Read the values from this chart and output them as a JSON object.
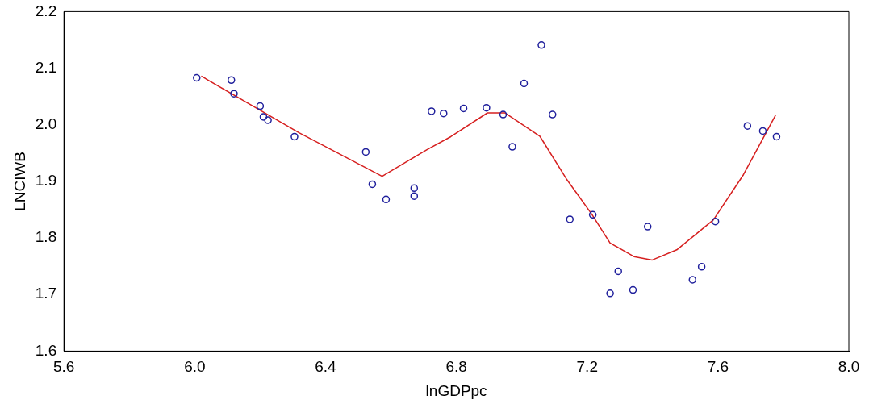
{
  "chart_data": {
    "type": "scatter",
    "xlabel": "lnGDPpc",
    "ylabel": "LNCIWB",
    "xlim": [
      5.6,
      8.0
    ],
    "xticks": [
      5.6,
      {
        "value": 6,
        "label": "6.0"
      },
      6.4,
      6.8,
      7.2,
      7.6,
      {
        "value": 8,
        "label": "8.0"
      }
    ],
    "ylim": [
      1.6,
      2.2
    ],
    "yticks": [
      1.6,
      1.7,
      1.8,
      1.9,
      {
        "value": 2,
        "label": "2.0"
      },
      2.1,
      2.2
    ],
    "grid": false,
    "legend": false,
    "marker": "circle",
    "series": [
      {
        "type": "scatter",
        "color": "#1f1f9c",
        "x": [
          6.006,
          6.112,
          6.12,
          6.2,
          6.21,
          6.224,
          6.305,
          6.523,
          6.543,
          6.585,
          6.671,
          6.671,
          6.724,
          6.761,
          6.822,
          6.892,
          6.943,
          6.971,
          7.007,
          7.06,
          7.094,
          7.147,
          7.217,
          7.295,
          7.27,
          7.34,
          7.385,
          7.522,
          7.55,
          7.592,
          7.69,
          7.737,
          7.779
        ],
        "values": [
          2.083,
          2.079,
          2.055,
          2.033,
          2.014,
          2.008,
          1.979,
          1.952,
          1.895,
          1.868,
          1.888,
          1.874,
          2.024,
          2.02,
          2.029,
          2.03,
          2.018,
          1.961,
          2.073,
          2.141,
          2.018,
          1.833,
          1.841,
          1.741,
          1.702,
          1.708,
          1.82,
          1.726,
          1.749,
          1.829,
          1.998,
          1.989,
          1.979
        ]
      },
      {
        "type": "line",
        "color": "#d62020",
        "marker": "none",
        "x": [
          6.02,
          6.319,
          6.573,
          6.71,
          6.783,
          6.895,
          6.948,
          7.055,
          7.138,
          7.214,
          7.27,
          7.343,
          7.399,
          7.474,
          7.586,
          7.678,
          7.776
        ],
        "values": [
          2.086,
          1.986,
          1.909,
          1.956,
          1.979,
          2.021,
          2.021,
          1.98,
          1.903,
          1.842,
          1.791,
          1.767,
          1.761,
          1.779,
          1.832,
          1.912,
          2.017
        ]
      }
    ]
  }
}
